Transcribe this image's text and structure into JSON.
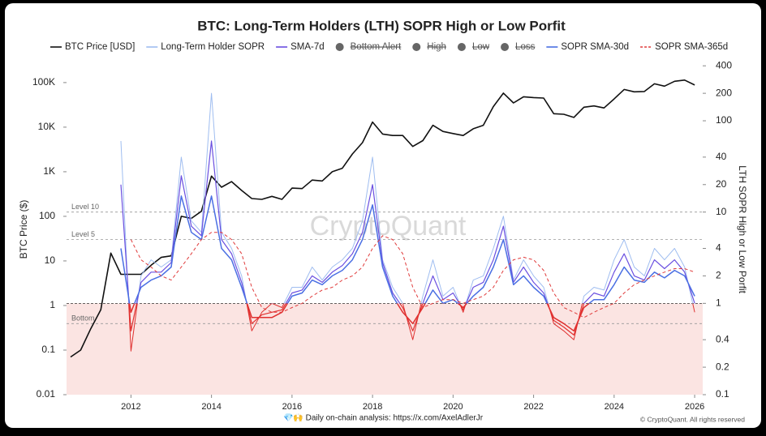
{
  "chart_data": {
    "type": "line",
    "title": "BTC: Long-Term Holders (LTH) SOPR High or Low Porfit",
    "y_label": "BTC Price ($)",
    "y2_label": "LTH SOPR High or Low Porfit",
    "watermark": "CryptoQuant",
    "footer_left": "💎🙌 Daily on-chain analysis: https://x.com/AxelAdlerJr",
    "footer_right": "© CryptoQuant. All rights reserved",
    "legend_disabled": [
      "Bottom Alert",
      "High",
      "Low",
      "Loss"
    ],
    "log_scale": true,
    "loss_threshold": 1,
    "loss_color": "#e0302f",
    "loss_zone_color": "#fbe4e2",
    "levels": [
      {
        "label": "Level 10",
        "value": 10
      },
      {
        "label": "Level 5",
        "value": 5
      },
      {
        "label": "Bottom",
        "value": 0.6
      }
    ],
    "xlim": [
      2010.4,
      2026.2
    ],
    "xticks": [
      2012,
      2014,
      2016,
      2018,
      2020,
      2022,
      2024,
      2026
    ],
    "ylim": [
      0.01,
      250000
    ],
    "yticks": [
      0.01,
      0.1,
      1,
      10,
      100,
      {
        "value": 1000,
        "label": "1K"
      },
      {
        "value": 10000,
        "label": "10K"
      },
      {
        "value": 100000,
        "label": "100K"
      }
    ],
    "y2lim": [
      0.1,
      410
    ],
    "y2ticks": [
      0.1,
      0.2,
      0.4,
      1,
      2,
      4,
      10,
      20,
      40,
      100,
      200,
      400
    ],
    "x": [
      2010.5,
      2010.75,
      2011,
      2011.25,
      2011.5,
      2011.75,
      2012,
      2012.25,
      2012.5,
      2012.75,
      2013,
      2013.25,
      2013.5,
      2013.75,
      2014,
      2014.25,
      2014.5,
      2014.75,
      2015,
      2015.25,
      2015.5,
      2015.75,
      2016,
      2016.25,
      2016.5,
      2016.75,
      2017,
      2017.25,
      2017.5,
      2017.75,
      2018,
      2018.25,
      2018.5,
      2018.75,
      2019,
      2019.25,
      2019.5,
      2019.75,
      2020,
      2020.25,
      2020.5,
      2020.75,
      2021,
      2021.25,
      2021.5,
      2021.75,
      2022,
      2022.25,
      2022.5,
      2022.75,
      2023,
      2023.25,
      2023.5,
      2023.75,
      2024,
      2024.25,
      2024.5,
      2024.75,
      2025,
      2025.25,
      2025.5,
      2025.75,
      2026
    ],
    "series": [
      {
        "name": "BTC Price [USD]",
        "color": "#111111",
        "width": 1.6,
        "values": [
          0.07,
          0.1,
          0.3,
          0.8,
          15,
          5,
          5,
          5,
          8,
          12,
          13,
          100,
          90,
          130,
          800,
          450,
          600,
          380,
          250,
          240,
          280,
          240,
          430,
          420,
          650,
          620,
          1000,
          1200,
          2500,
          4500,
          13000,
          7000,
          6500,
          6500,
          3700,
          5000,
          11000,
          8000,
          7200,
          6500,
          9200,
          11000,
          29000,
          58000,
          35000,
          48000,
          46000,
          45000,
          20000,
          19500,
          16500,
          28000,
          30000,
          27000,
          43000,
          70000,
          62000,
          63000,
          94000,
          83000,
          107000,
          114000,
          88000
        ]
      },
      {
        "name": "Long-Term Holder SOPR",
        "color": "#9fbdf0",
        "width": 1,
        "axis": "y2",
        "values": [
          null,
          null,
          null,
          null,
          null,
          60,
          0.3,
          2,
          3,
          2.5,
          3,
          40,
          8,
          6,
          200,
          6,
          4,
          2,
          0.5,
          0.8,
          1,
          0.9,
          1.5,
          1.5,
          2.5,
          1.8,
          2.5,
          3,
          4,
          8,
          40,
          3,
          1.5,
          1,
          0.4,
          1.2,
          3,
          1.2,
          1.5,
          0.8,
          1.8,
          2,
          4,
          9,
          1.8,
          3,
          2,
          1.5,
          0.6,
          0.5,
          0.4,
          1.2,
          1.5,
          1.4,
          3,
          5,
          2.5,
          2,
          4,
          3,
          4,
          2.5,
          0.8
        ]
      },
      {
        "name": "SMA-7d",
        "color": "#6a4fe0",
        "width": 1.2,
        "axis": "y2",
        "values": [
          null,
          null,
          null,
          null,
          null,
          20,
          0.5,
          1.7,
          2.2,
          2.2,
          2.8,
          25,
          7,
          5.5,
          60,
          5,
          3.5,
          1.7,
          0.6,
          0.75,
          0.8,
          0.85,
          1.3,
          1.4,
          2,
          1.7,
          2.2,
          2.6,
          3.5,
          6,
          20,
          2.8,
          1.3,
          0.9,
          0.5,
          1,
          2,
          1.1,
          1.3,
          0.85,
          1.5,
          1.7,
          3,
          7,
          1.7,
          2.5,
          1.7,
          1.3,
          0.65,
          0.55,
          0.45,
          1,
          1.3,
          1.2,
          2.2,
          3.5,
          2,
          1.8,
          3,
          2.4,
          3,
          2.2,
          1
        ]
      },
      {
        "name": "SOPR SMA-30d",
        "color": "#4a6fe3",
        "width": 1.5,
        "axis": "y2",
        "values": [
          null,
          null,
          null,
          null,
          null,
          4,
          0.8,
          1.5,
          1.8,
          2,
          2.5,
          15,
          6,
          5,
          15,
          4,
          3,
          1.5,
          0.7,
          0.7,
          0.7,
          0.8,
          1.2,
          1.3,
          1.8,
          1.6,
          2,
          2.3,
          3,
          5,
          12,
          2.5,
          1.2,
          0.8,
          0.6,
          0.9,
          1.4,
          1,
          1.1,
          0.9,
          1.2,
          1.5,
          2.5,
          5,
          1.6,
          2,
          1.5,
          1.2,
          0.7,
          0.6,
          0.5,
          0.9,
          1.1,
          1.1,
          1.6,
          2.5,
          1.8,
          1.7,
          2.2,
          1.9,
          2.3,
          2,
          1.2
        ]
      },
      {
        "name": "SOPR SMA-365d",
        "color": "#e03b3b",
        "width": 1,
        "dash": true,
        "axis": "y2",
        "values": [
          null,
          null,
          null,
          null,
          null,
          null,
          5,
          3,
          2.5,
          2,
          1.8,
          2.5,
          3.5,
          5,
          6,
          6,
          5,
          3.5,
          1.5,
          0.9,
          0.8,
          0.8,
          0.9,
          1,
          1.2,
          1.4,
          1.5,
          1.8,
          2,
          2.5,
          4,
          5.5,
          5,
          3.5,
          1.5,
          0.9,
          1,
          1.1,
          1.1,
          1,
          1.1,
          1.2,
          1.5,
          2.3,
          3,
          3.2,
          3,
          2.3,
          1.3,
          0.9,
          0.8,
          0.7,
          0.8,
          0.9,
          1,
          1.3,
          1.6,
          1.8,
          2,
          2.2,
          2.4,
          2.4,
          2.2
        ]
      }
    ]
  }
}
